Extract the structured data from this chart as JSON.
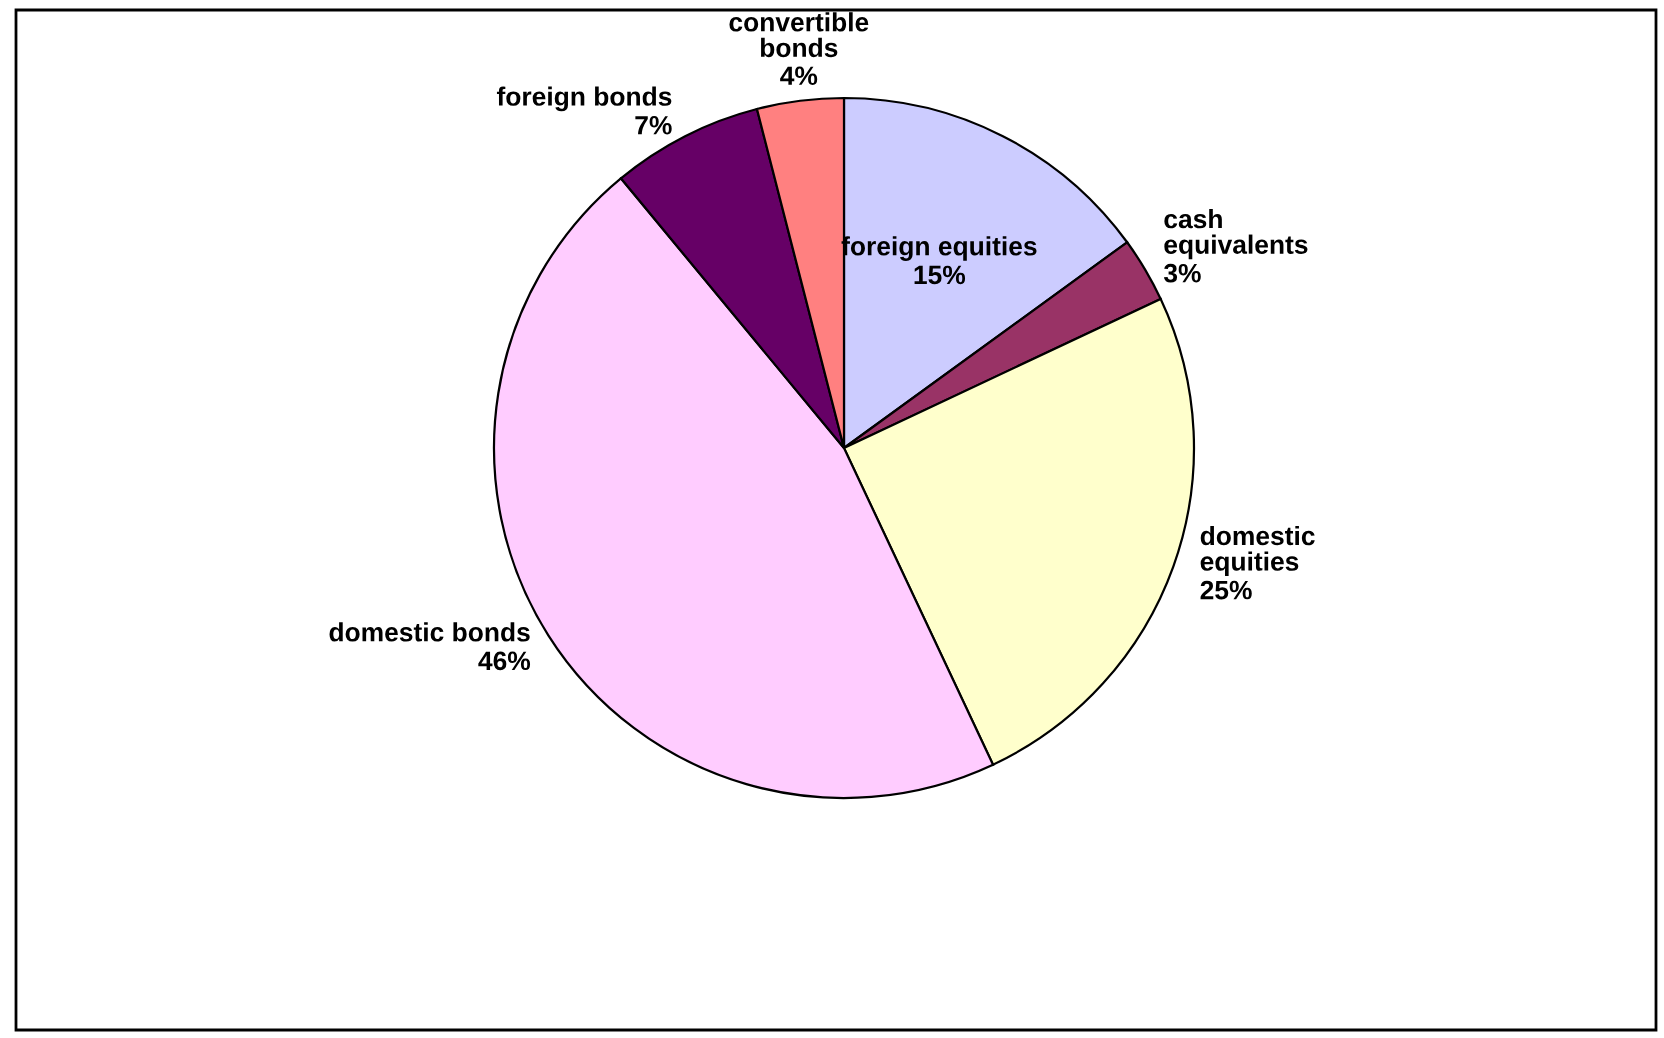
{
  "chart_data": {
    "type": "pie",
    "categories": [
      "foreign equities",
      "cash\nequivalents",
      "domestic\nequities",
      "domestic bonds",
      "foreign bonds",
      "convertible\nbonds"
    ],
    "values": [
      15,
      3,
      25,
      46,
      7,
      4
    ],
    "value_labels": [
      "15%",
      "3%",
      "25%",
      "46%",
      "7%",
      "4%"
    ],
    "colors": [
      "#ccccff",
      "#993366",
      "#ffffcc",
      "#ffccff",
      "#660066",
      "#ff8080"
    ]
  }
}
